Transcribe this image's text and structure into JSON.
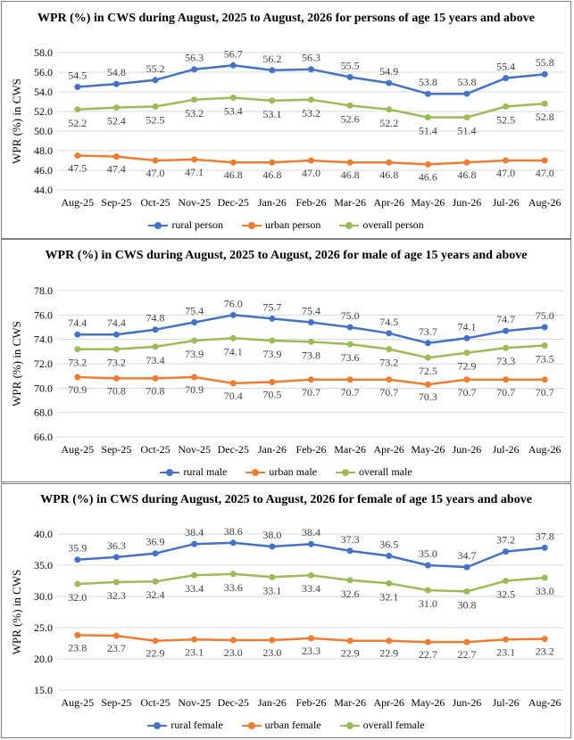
{
  "chart_data": [
    {
      "type": "line",
      "title": "WPR (%) in CWS during August, 2025 to August, 2026 for persons of age 15 years and above",
      "ylabel": "WPR (%) in CWS",
      "xlabel": "",
      "categories": [
        "Aug-25",
        "Sep-25",
        "Oct-25",
        "Nov-25",
        "Dec-25",
        "Jan-26",
        "Feb-26",
        "Mar-26",
        "Apr-26",
        "May-26",
        "Jun-26",
        "Jul-26",
        "Aug-26"
      ],
      "ylim": [
        44.0,
        58.0
      ],
      "yticks": [
        "44.0",
        "46.0",
        "48.0",
        "50.0",
        "52.0",
        "54.0",
        "56.0",
        "58.0"
      ],
      "grid": true,
      "legend_position": "bottom",
      "series": [
        {
          "name": "rural person",
          "color": "#4472c4",
          "values": [
            54.5,
            54.8,
            55.2,
            56.3,
            56.7,
            56.2,
            56.3,
            55.5,
            54.9,
            53.8,
            53.8,
            55.4,
            55.8
          ],
          "labels": [
            "54.5",
            "54.8",
            "55.2",
            "56.3",
            "56.7",
            "56.2",
            "56.3",
            "55.5",
            "54.9",
            "53.8",
            "53.8",
            "55.4",
            "55.8"
          ]
        },
        {
          "name": "urban person",
          "color": "#ed7d31",
          "values": [
            47.5,
            47.4,
            47.0,
            47.1,
            46.8,
            46.8,
            47.0,
            46.8,
            46.8,
            46.6,
            46.8,
            47.0,
            47.0
          ],
          "labels": [
            "47.5",
            "47.4",
            "47.0",
            "47.1",
            "46.8",
            "46.8",
            "47.0",
            "46.8",
            "46.8",
            "46.6",
            "46.8",
            "47.0",
            "47.0"
          ]
        },
        {
          "name": "overall person",
          "color": "#9bbb59",
          "values": [
            52.2,
            52.4,
            52.5,
            53.2,
            53.4,
            53.1,
            53.2,
            52.6,
            52.2,
            51.4,
            51.4,
            52.5,
            52.8
          ],
          "labels": [
            "52.2",
            "52.4",
            "52.5",
            "53.2",
            "53.4",
            "53.1",
            "53.2",
            "52.6",
            "52.2",
            "51.4",
            "51.4",
            "52.5",
            "52.8"
          ]
        }
      ]
    },
    {
      "type": "line",
      "title": "WPR (%) in CWS during August, 2025 to August, 2026 for male of age 15 years and above",
      "ylabel": "WPR (%) in CWS",
      "xlabel": "",
      "categories": [
        "Aug-25",
        "Sep-25",
        "Oct-25",
        "Nov-25",
        "Dec-25",
        "Jan-26",
        "Feb-26",
        "Mar-26",
        "Apr-26",
        "May-26",
        "Jun-26",
        "Jul-26",
        "Aug-26"
      ],
      "ylim": [
        66.0,
        78.0
      ],
      "yticks": [
        "66.0",
        "68.0",
        "70.0",
        "72.0",
        "74.0",
        "76.0",
        "78.0"
      ],
      "grid": true,
      "legend_position": "bottom",
      "series": [
        {
          "name": "rural male",
          "color": "#4472c4",
          "values": [
            74.4,
            74.4,
            74.8,
            75.4,
            76.0,
            75.7,
            75.4,
            75.0,
            74.5,
            73.7,
            74.1,
            74.7,
            75.0
          ],
          "labels": [
            "74.4",
            "74.4",
            "74.8",
            "75.4",
            "76.0",
            "75.7",
            "75.4",
            "75.0",
            "74.5",
            "73.7",
            "74.1",
            "74.7",
            "75.0"
          ]
        },
        {
          "name": "urban male",
          "color": "#ed7d31",
          "values": [
            70.9,
            70.8,
            70.8,
            70.9,
            70.4,
            70.5,
            70.7,
            70.7,
            70.7,
            70.3,
            70.7,
            70.7,
            70.7
          ],
          "labels": [
            "70.9",
            "70.8",
            "70.8",
            "70.9",
            "70.4",
            "70.5",
            "70.7",
            "70.7",
            "70.7",
            "70.3",
            "70.7",
            "70.7",
            "70.7"
          ]
        },
        {
          "name": "overall male",
          "color": "#9bbb59",
          "values": [
            73.2,
            73.2,
            73.4,
            73.9,
            74.1,
            73.9,
            73.8,
            73.6,
            73.2,
            72.5,
            72.9,
            73.3,
            73.5
          ],
          "labels": [
            "73.2",
            "73.2",
            "73.4",
            "73.9",
            "74.1",
            "73.9",
            "73.8",
            "73.6",
            "73.2",
            "72.5",
            "72.9",
            "73.3",
            "73.5"
          ]
        }
      ]
    },
    {
      "type": "line",
      "title": "WPR (%) in CWS during August, 2025 to August, 2026 for female of age 15 years and above",
      "ylabel": "WPR (%) in CWS",
      "xlabel": "",
      "categories": [
        "Aug-25",
        "Sep-25",
        "Oct-25",
        "Nov-25",
        "Dec-25",
        "Jan-26",
        "Feb-26",
        "Mar-26",
        "Apr-26",
        "May-26",
        "Jun-26",
        "Jul-26",
        "Aug-26"
      ],
      "ylim": [
        15.0,
        40.0
      ],
      "yticks": [
        "15.0",
        "20.0",
        "25.0",
        "30.0",
        "35.0",
        "40.0"
      ],
      "grid": true,
      "legend_position": "bottom",
      "series": [
        {
          "name": "rural female",
          "color": "#4472c4",
          "values": [
            35.9,
            36.3,
            36.9,
            38.4,
            38.6,
            38.0,
            38.4,
            37.3,
            36.5,
            35.0,
            34.7,
            37.2,
            37.8
          ],
          "labels": [
            "35.9",
            "36.3",
            "36.9",
            "38.4",
            "38.6",
            "38.0",
            "38.4",
            "37.3",
            "36.5",
            "35.0",
            "34.7",
            "37.2",
            "37.8"
          ]
        },
        {
          "name": "urban female",
          "color": "#ed7d31",
          "values": [
            23.8,
            23.7,
            22.9,
            23.1,
            23.0,
            23.0,
            23.3,
            22.9,
            22.9,
            22.7,
            22.7,
            23.1,
            23.2
          ],
          "labels": [
            "23.8",
            "23.7",
            "22.9",
            "23.1",
            "23.0",
            "23.0",
            "23.3",
            "22.9",
            "22.9",
            "22.7",
            "22.7",
            "23.1",
            "23.2"
          ]
        },
        {
          "name": "overall female",
          "color": "#9bbb59",
          "values": [
            32.0,
            32.3,
            32.4,
            33.4,
            33.6,
            33.1,
            33.4,
            32.6,
            32.1,
            31.0,
            30.8,
            32.5,
            33.0
          ],
          "labels": [
            "32.0",
            "32.3",
            "32.4",
            "33.4",
            "33.6",
            "33.1",
            "33.4",
            "32.6",
            "32.1",
            "31.0",
            "30.8",
            "32.5",
            "33.0"
          ]
        }
      ]
    }
  ]
}
